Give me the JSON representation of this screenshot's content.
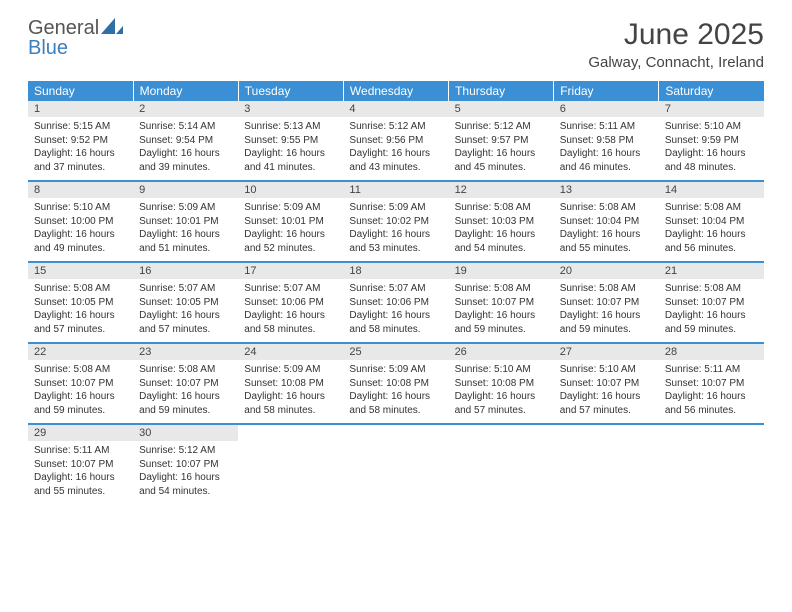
{
  "brand": {
    "general": "General",
    "blue": "Blue"
  },
  "title": "June 2025",
  "location": "Galway, Connacht, Ireland",
  "colors": {
    "header_bg": "#3b8fd4",
    "header_text": "#ffffff",
    "daynum_bg": "#e8e8e8",
    "border": "#3b8fd4",
    "logo_gray": "#555555",
    "logo_blue": "#3b7fbf",
    "text": "#333333"
  },
  "dayNames": [
    "Sunday",
    "Monday",
    "Tuesday",
    "Wednesday",
    "Thursday",
    "Friday",
    "Saturday"
  ],
  "weeks": [
    [
      {
        "n": "1",
        "sr": "5:15 AM",
        "ss": "9:52 PM",
        "dl": "16 hours and 37 minutes."
      },
      {
        "n": "2",
        "sr": "5:14 AM",
        "ss": "9:54 PM",
        "dl": "16 hours and 39 minutes."
      },
      {
        "n": "3",
        "sr": "5:13 AM",
        "ss": "9:55 PM",
        "dl": "16 hours and 41 minutes."
      },
      {
        "n": "4",
        "sr": "5:12 AM",
        "ss": "9:56 PM",
        "dl": "16 hours and 43 minutes."
      },
      {
        "n": "5",
        "sr": "5:12 AM",
        "ss": "9:57 PM",
        "dl": "16 hours and 45 minutes."
      },
      {
        "n": "6",
        "sr": "5:11 AM",
        "ss": "9:58 PM",
        "dl": "16 hours and 46 minutes."
      },
      {
        "n": "7",
        "sr": "5:10 AM",
        "ss": "9:59 PM",
        "dl": "16 hours and 48 minutes."
      }
    ],
    [
      {
        "n": "8",
        "sr": "5:10 AM",
        "ss": "10:00 PM",
        "dl": "16 hours and 49 minutes."
      },
      {
        "n": "9",
        "sr": "5:09 AM",
        "ss": "10:01 PM",
        "dl": "16 hours and 51 minutes."
      },
      {
        "n": "10",
        "sr": "5:09 AM",
        "ss": "10:01 PM",
        "dl": "16 hours and 52 minutes."
      },
      {
        "n": "11",
        "sr": "5:09 AM",
        "ss": "10:02 PM",
        "dl": "16 hours and 53 minutes."
      },
      {
        "n": "12",
        "sr": "5:08 AM",
        "ss": "10:03 PM",
        "dl": "16 hours and 54 minutes."
      },
      {
        "n": "13",
        "sr": "5:08 AM",
        "ss": "10:04 PM",
        "dl": "16 hours and 55 minutes."
      },
      {
        "n": "14",
        "sr": "5:08 AM",
        "ss": "10:04 PM",
        "dl": "16 hours and 56 minutes."
      }
    ],
    [
      {
        "n": "15",
        "sr": "5:08 AM",
        "ss": "10:05 PM",
        "dl": "16 hours and 57 minutes."
      },
      {
        "n": "16",
        "sr": "5:07 AM",
        "ss": "10:05 PM",
        "dl": "16 hours and 57 minutes."
      },
      {
        "n": "17",
        "sr": "5:07 AM",
        "ss": "10:06 PM",
        "dl": "16 hours and 58 minutes."
      },
      {
        "n": "18",
        "sr": "5:07 AM",
        "ss": "10:06 PM",
        "dl": "16 hours and 58 minutes."
      },
      {
        "n": "19",
        "sr": "5:08 AM",
        "ss": "10:07 PM",
        "dl": "16 hours and 59 minutes."
      },
      {
        "n": "20",
        "sr": "5:08 AM",
        "ss": "10:07 PM",
        "dl": "16 hours and 59 minutes."
      },
      {
        "n": "21",
        "sr": "5:08 AM",
        "ss": "10:07 PM",
        "dl": "16 hours and 59 minutes."
      }
    ],
    [
      {
        "n": "22",
        "sr": "5:08 AM",
        "ss": "10:07 PM",
        "dl": "16 hours and 59 minutes."
      },
      {
        "n": "23",
        "sr": "5:08 AM",
        "ss": "10:07 PM",
        "dl": "16 hours and 59 minutes."
      },
      {
        "n": "24",
        "sr": "5:09 AM",
        "ss": "10:08 PM",
        "dl": "16 hours and 58 minutes."
      },
      {
        "n": "25",
        "sr": "5:09 AM",
        "ss": "10:08 PM",
        "dl": "16 hours and 58 minutes."
      },
      {
        "n": "26",
        "sr": "5:10 AM",
        "ss": "10:08 PM",
        "dl": "16 hours and 57 minutes."
      },
      {
        "n": "27",
        "sr": "5:10 AM",
        "ss": "10:07 PM",
        "dl": "16 hours and 57 minutes."
      },
      {
        "n": "28",
        "sr": "5:11 AM",
        "ss": "10:07 PM",
        "dl": "16 hours and 56 minutes."
      }
    ],
    [
      {
        "n": "29",
        "sr": "5:11 AM",
        "ss": "10:07 PM",
        "dl": "16 hours and 55 minutes."
      },
      {
        "n": "30",
        "sr": "5:12 AM",
        "ss": "10:07 PM",
        "dl": "16 hours and 54 minutes."
      },
      null,
      null,
      null,
      null,
      null
    ]
  ],
  "labels": {
    "sunrise": "Sunrise:",
    "sunset": "Sunset:",
    "daylight": "Daylight:"
  }
}
